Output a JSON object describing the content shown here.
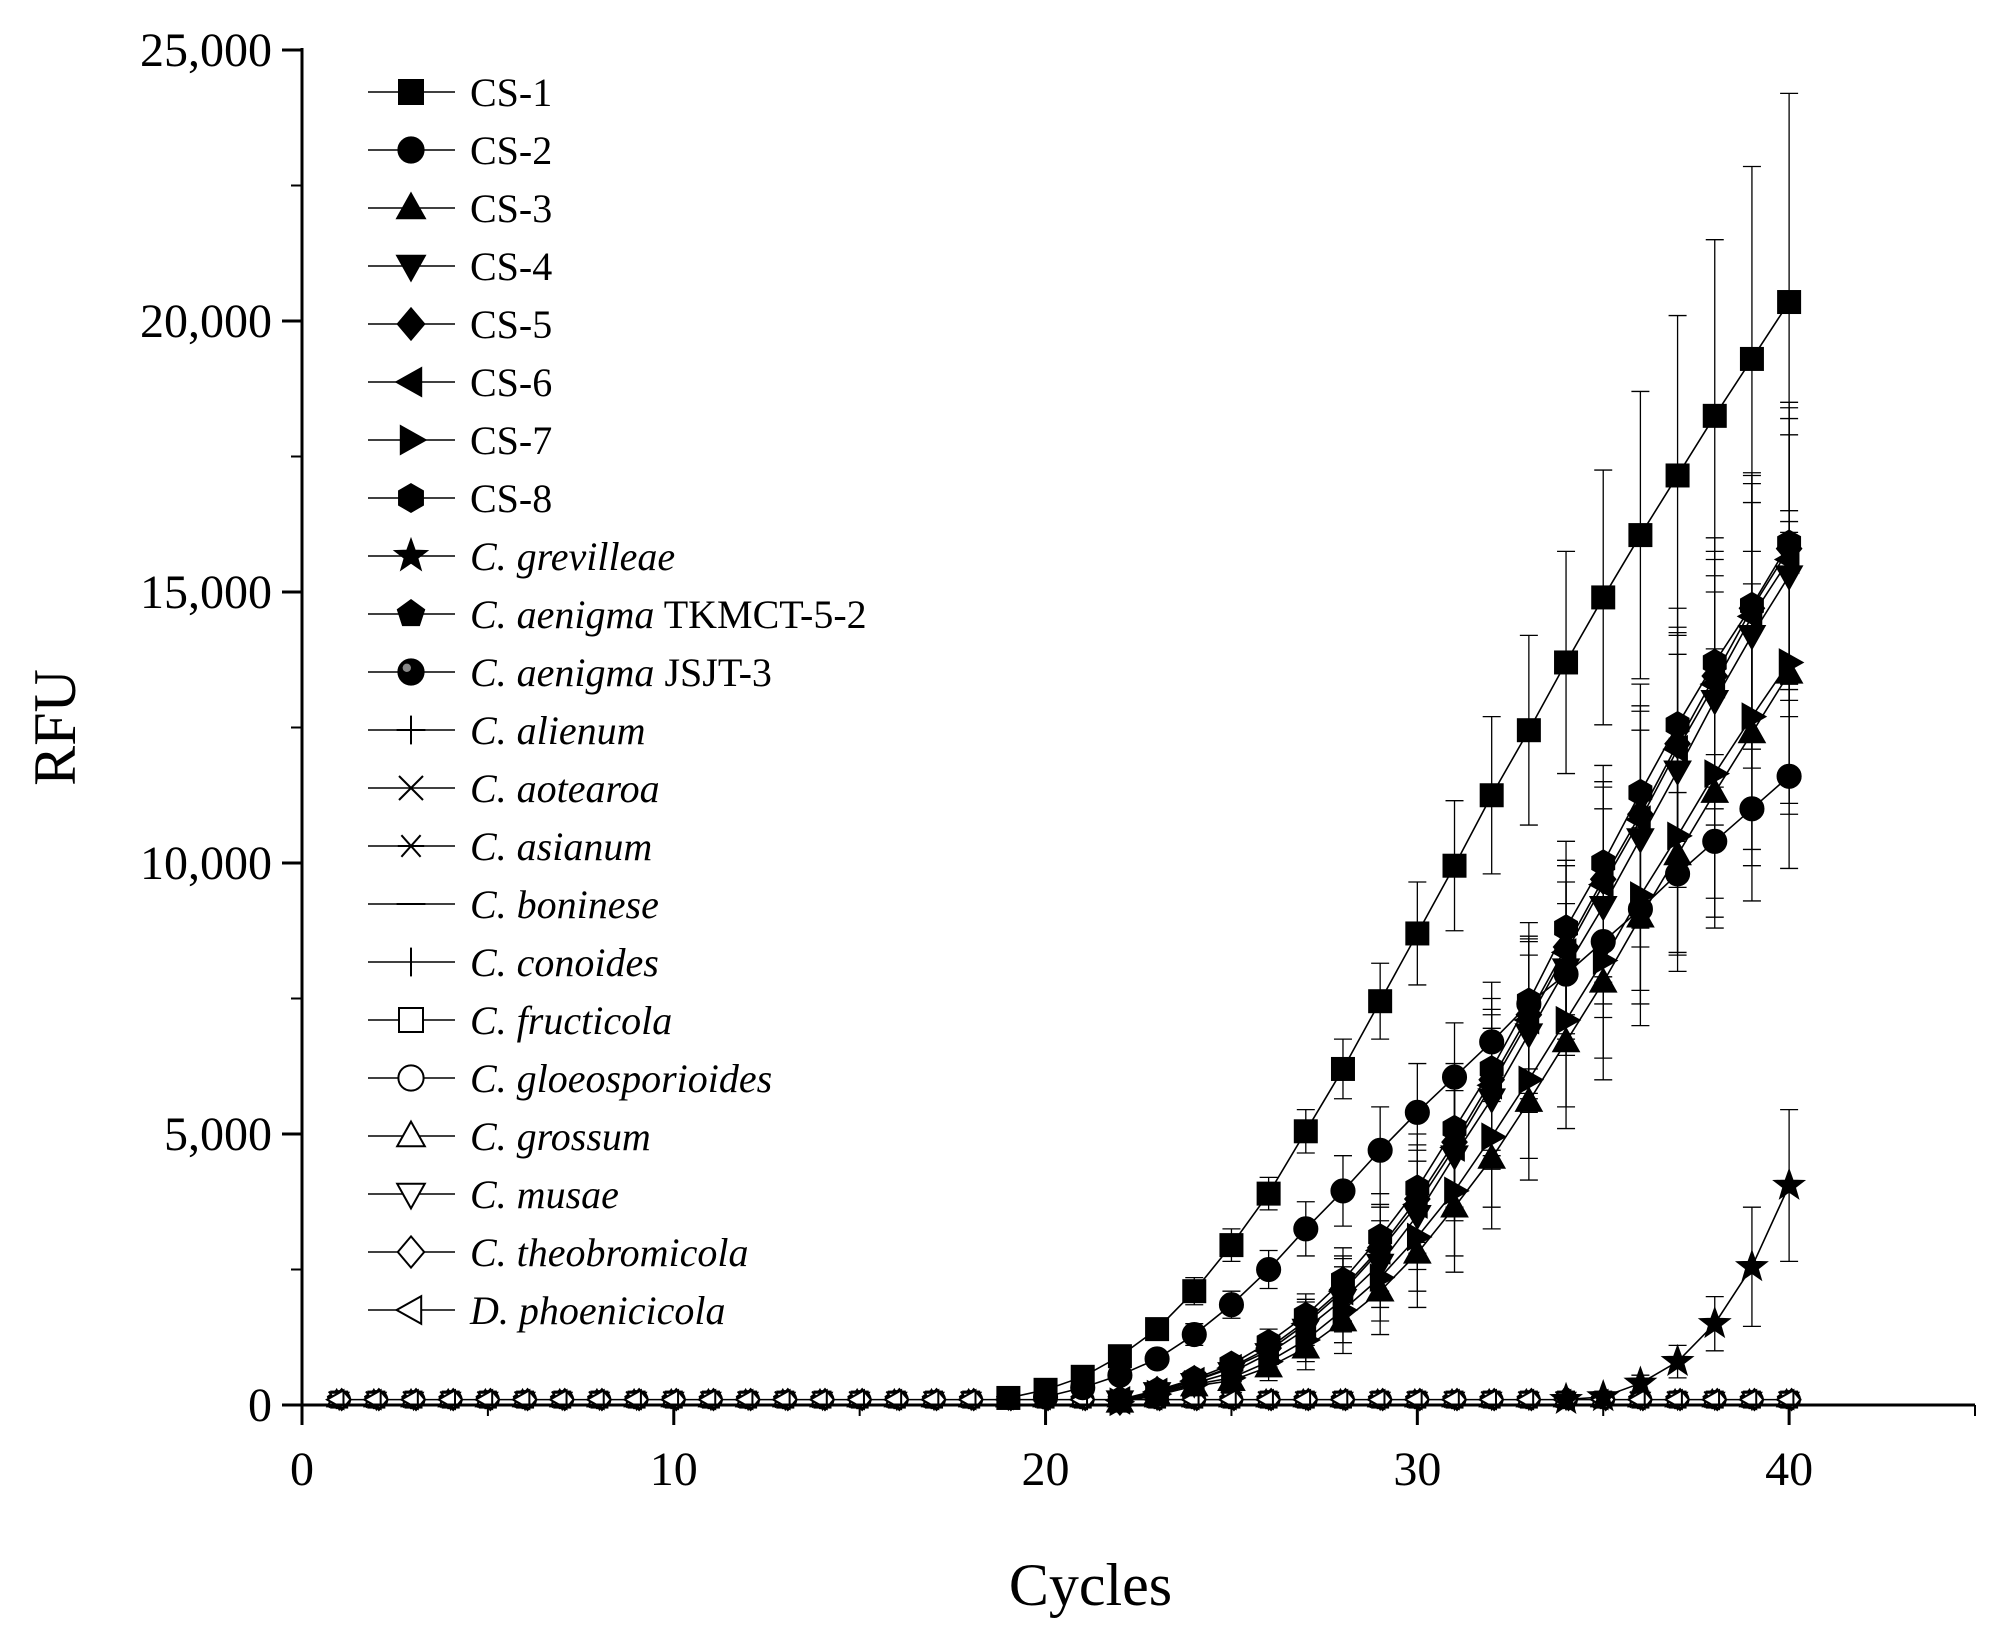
{
  "chart_data": {
    "type": "line",
    "title": "",
    "xlabel": "Cycles",
    "ylabel": "RFU",
    "xlim": [
      0,
      45
    ],
    "ylim": [
      0,
      25000
    ],
    "xticks": [
      0,
      10,
      20,
      30,
      40
    ],
    "xtick_labels": [
      "0",
      "10",
      "20",
      "30",
      "40"
    ],
    "yticks": [
      0,
      5000,
      10000,
      15000,
      20000,
      25000
    ],
    "ytick_labels": [
      "0",
      "5,000",
      "10,000",
      "15,000",
      "20,000",
      "25,000"
    ],
    "grid": false,
    "legend_position": "top-left",
    "series": [
      {
        "name": "CS-1",
        "name_parts": [
          {
            "text": "CS-1",
            "italic": false
          }
        ],
        "marker": "square",
        "filled": true,
        "x": [
          19,
          20,
          21,
          22,
          23,
          24,
          25,
          26,
          27,
          28,
          29,
          30,
          31,
          32,
          33,
          34,
          35,
          36,
          37,
          38,
          39,
          40
        ],
        "y": [
          130,
          280,
          520,
          900,
          1400,
          2100,
          2950,
          3900,
          5050,
          6200,
          7450,
          8700,
          9950,
          11250,
          12450,
          13700,
          14900,
          16050,
          17150,
          18250,
          19300,
          20350
        ],
        "error": [
          30,
          60,
          80,
          150,
          200,
          250,
          300,
          300,
          400,
          550,
          700,
          950,
          1200,
          1450,
          1750,
          2050,
          2350,
          2650,
          2950,
          3250,
          3550,
          3850
        ]
      },
      {
        "name": "CS-2",
        "name_parts": [
          {
            "text": "CS-2",
            "italic": false
          }
        ],
        "marker": "circle",
        "filled": true,
        "x": [
          20,
          21,
          22,
          23,
          24,
          25,
          26,
          27,
          28,
          29,
          30,
          31,
          32,
          33,
          34,
          35,
          36,
          37,
          38,
          39,
          40
        ],
        "y": [
          150,
          320,
          550,
          850,
          1300,
          1850,
          2500,
          3250,
          3950,
          4700,
          5400,
          6050,
          6700,
          7400,
          7950,
          8550,
          9150,
          9800,
          10400,
          11000,
          11600
        ],
        "error": [
          50,
          80,
          100,
          150,
          200,
          250,
          350,
          500,
          650,
          800,
          900,
          1000,
          1100,
          1200,
          1300,
          1400,
          1500,
          1500,
          1600,
          1700,
          1700
        ]
      },
      {
        "name": "CS-3",
        "name_parts": [
          {
            "text": "CS-3",
            "italic": false
          }
        ],
        "marker": "triangle-up",
        "filled": true,
        "x": [
          22,
          23,
          24,
          25,
          26,
          27,
          28,
          29,
          30,
          31,
          32,
          33,
          34,
          35,
          36,
          37,
          38,
          39,
          40
        ],
        "y": [
          50,
          180,
          350,
          450,
          700,
          1050,
          1550,
          2100,
          2800,
          3650,
          4550,
          5600,
          6700,
          7800,
          9000,
          10150,
          11300,
          12400,
          13500
        ],
        "error": [
          30,
          60,
          90,
          120,
          250,
          400,
          600,
          800,
          1000,
          1200,
          1300,
          1450,
          1600,
          1800,
          2000,
          2150,
          2300,
          2450,
          2600
        ]
      },
      {
        "name": "CS-4",
        "name_parts": [
          {
            "text": "CS-4",
            "italic": false
          }
        ],
        "marker": "triangle-down",
        "filled": true,
        "x": [
          22,
          23,
          24,
          25,
          26,
          27,
          28,
          29,
          30,
          31,
          32,
          33,
          34,
          35,
          36,
          37,
          38,
          39,
          40
        ],
        "y": [
          80,
          230,
          400,
          600,
          950,
          1400,
          1950,
          2600,
          3500,
          4600,
          5650,
          6850,
          8050,
          9200,
          10450,
          11700,
          13000,
          14200,
          15300
        ],
        "error": [
          30,
          60,
          90,
          120,
          250,
          400,
          600,
          800,
          1000,
          1200,
          1300,
          1450,
          1600,
          1800,
          2000,
          2150,
          2300,
          2450,
          2600
        ]
      },
      {
        "name": "CS-5",
        "name_parts": [
          {
            "text": "CS-5",
            "italic": false
          }
        ],
        "marker": "diamond",
        "filled": true,
        "x": [
          22,
          23,
          24,
          25,
          26,
          27,
          28,
          29,
          30,
          31,
          32,
          33,
          34,
          35,
          36,
          37,
          38,
          39,
          40
        ],
        "y": [
          90,
          250,
          450,
          700,
          1050,
          1550,
          2150,
          2900,
          3800,
          4850,
          6000,
          7200,
          8450,
          9700,
          10900,
          12200,
          13450,
          14700,
          15800
        ],
        "error": [
          30,
          60,
          90,
          120,
          250,
          400,
          600,
          800,
          1000,
          1200,
          1300,
          1450,
          1600,
          1800,
          2000,
          2150,
          2300,
          2450,
          2600
        ]
      },
      {
        "name": "CS-6",
        "name_parts": [
          {
            "text": "CS-6",
            "italic": false
          }
        ],
        "marker": "triangle-left",
        "filled": true,
        "x": [
          22,
          23,
          24,
          25,
          26,
          27,
          28,
          29,
          30,
          31,
          32,
          33,
          34,
          35,
          36,
          37,
          38,
          39,
          40
        ],
        "y": [
          85,
          240,
          440,
          680,
          1000,
          1500,
          2100,
          2850,
          3700,
          4750,
          5900,
          7100,
          8350,
          9600,
          10800,
          12100,
          13300,
          14550,
          15600
        ],
        "error": [
          30,
          60,
          90,
          120,
          250,
          400,
          600,
          800,
          1000,
          1200,
          1300,
          1450,
          1600,
          1800,
          2000,
          2150,
          2300,
          2450,
          2600
        ]
      },
      {
        "name": "CS-7",
        "name_parts": [
          {
            "text": "CS-7",
            "italic": false
          }
        ],
        "marker": "triangle-right",
        "filled": true,
        "x": [
          22,
          23,
          24,
          25,
          26,
          27,
          28,
          29,
          30,
          31,
          32,
          33,
          34,
          35,
          36,
          37,
          38,
          39,
          40
        ],
        "y": [
          60,
          200,
          380,
          500,
          800,
          1200,
          1750,
          2350,
          3100,
          3950,
          4950,
          6000,
          7100,
          8200,
          9400,
          10500,
          11650,
          12700,
          13700
        ],
        "error": [
          30,
          60,
          90,
          120,
          250,
          400,
          600,
          800,
          1000,
          1200,
          1300,
          1450,
          1600,
          1800,
          2000,
          2150,
          2300,
          2450,
          2600
        ]
      },
      {
        "name": "CS-8",
        "name_parts": [
          {
            "text": "CS-8",
            "italic": false
          }
        ],
        "marker": "hexagon",
        "filled": true,
        "x": [
          22,
          23,
          24,
          25,
          26,
          27,
          28,
          29,
          30,
          31,
          32,
          33,
          34,
          35,
          36,
          37,
          38,
          39,
          40
        ],
        "y": [
          100,
          270,
          480,
          750,
          1150,
          1650,
          2300,
          3100,
          4000,
          5100,
          6200,
          7450,
          8800,
          10000,
          11300,
          12550,
          13700,
          14750,
          15900
        ],
        "error": [
          30,
          60,
          90,
          120,
          250,
          400,
          600,
          800,
          1000,
          1200,
          1300,
          1450,
          1600,
          1800,
          2000,
          2150,
          2300,
          2450,
          2600
        ]
      },
      {
        "name": "C. grevilleae",
        "name_parts": [
          {
            "text": "C. grevilleae",
            "italic": true
          }
        ],
        "marker": "star",
        "filled": true,
        "x": [
          34,
          35,
          36,
          37,
          38,
          39,
          40
        ],
        "y": [
          100,
          150,
          400,
          800,
          1500,
          2550,
          4050
        ],
        "error": [
          0,
          0,
          150,
          300,
          500,
          1100,
          1400
        ]
      },
      {
        "name": "C. aenigma TKMCT-5-2",
        "name_parts": [
          {
            "text": "C. aenigma",
            "italic": true
          },
          {
            "text": " TKMCT-5-2",
            "italic": false
          }
        ],
        "marker": "pentagon",
        "filled": true,
        "x": [],
        "y": []
      },
      {
        "name": "C. aenigma JSJT-3",
        "name_parts": [
          {
            "text": "C. aenigma",
            "italic": true
          },
          {
            "text": " JSJT-3",
            "italic": false
          }
        ],
        "marker": "half-circle",
        "filled": true,
        "x": [],
        "y": []
      },
      {
        "name": "C. alienum",
        "name_parts": [
          {
            "text": "C. alienum",
            "italic": true
          }
        ],
        "marker": "plus",
        "filled": false,
        "x": [],
        "y": []
      },
      {
        "name": "C. aotearoa",
        "name_parts": [
          {
            "text": "C. aotearoa",
            "italic": true
          }
        ],
        "marker": "cross",
        "filled": false,
        "x": [],
        "y": []
      },
      {
        "name": "C. asianum",
        "name_parts": [
          {
            "text": "C. asianum",
            "italic": true
          }
        ],
        "marker": "asterisk",
        "filled": false,
        "x": [],
        "y": []
      },
      {
        "name": "C. boninese",
        "name_parts": [
          {
            "text": "C. boninese",
            "italic": true
          }
        ],
        "marker": "dash",
        "filled": false,
        "x": [],
        "y": []
      },
      {
        "name": "C. conoides",
        "name_parts": [
          {
            "text": "C. conoides",
            "italic": true
          }
        ],
        "marker": "vbar",
        "filled": false,
        "x": [],
        "y": []
      },
      {
        "name": "C. fructicola",
        "name_parts": [
          {
            "text": "C. fructicola",
            "italic": true
          }
        ],
        "marker": "square",
        "filled": false,
        "x": [],
        "y": []
      },
      {
        "name": "C. gloeosporioides",
        "name_parts": [
          {
            "text": "C. gloeosporioides",
            "italic": true
          }
        ],
        "marker": "circle",
        "filled": false,
        "x": [],
        "y": []
      },
      {
        "name": "C. grossum",
        "name_parts": [
          {
            "text": "C. grossum",
            "italic": true
          }
        ],
        "marker": "triangle-up",
        "filled": false,
        "x": [],
        "y": []
      },
      {
        "name": "C. musae",
        "name_parts": [
          {
            "text": "C. musae",
            "italic": true
          }
        ],
        "marker": "triangle-down",
        "filled": false,
        "x": [],
        "y": []
      },
      {
        "name": "C. theobromicola",
        "name_parts": [
          {
            "text": "C. theobromicola",
            "italic": true
          }
        ],
        "marker": "diamond",
        "filled": false,
        "x": [],
        "y": []
      },
      {
        "name": "D. phoenicicola",
        "name_parts": [
          {
            "text": "D. phoenicicola",
            "italic": true
          }
        ],
        "marker": "triangle-left",
        "filled": false,
        "x": [],
        "y": []
      }
    ],
    "baseline": {
      "value": 100,
      "x_from": 1,
      "x_to": 40
    }
  }
}
